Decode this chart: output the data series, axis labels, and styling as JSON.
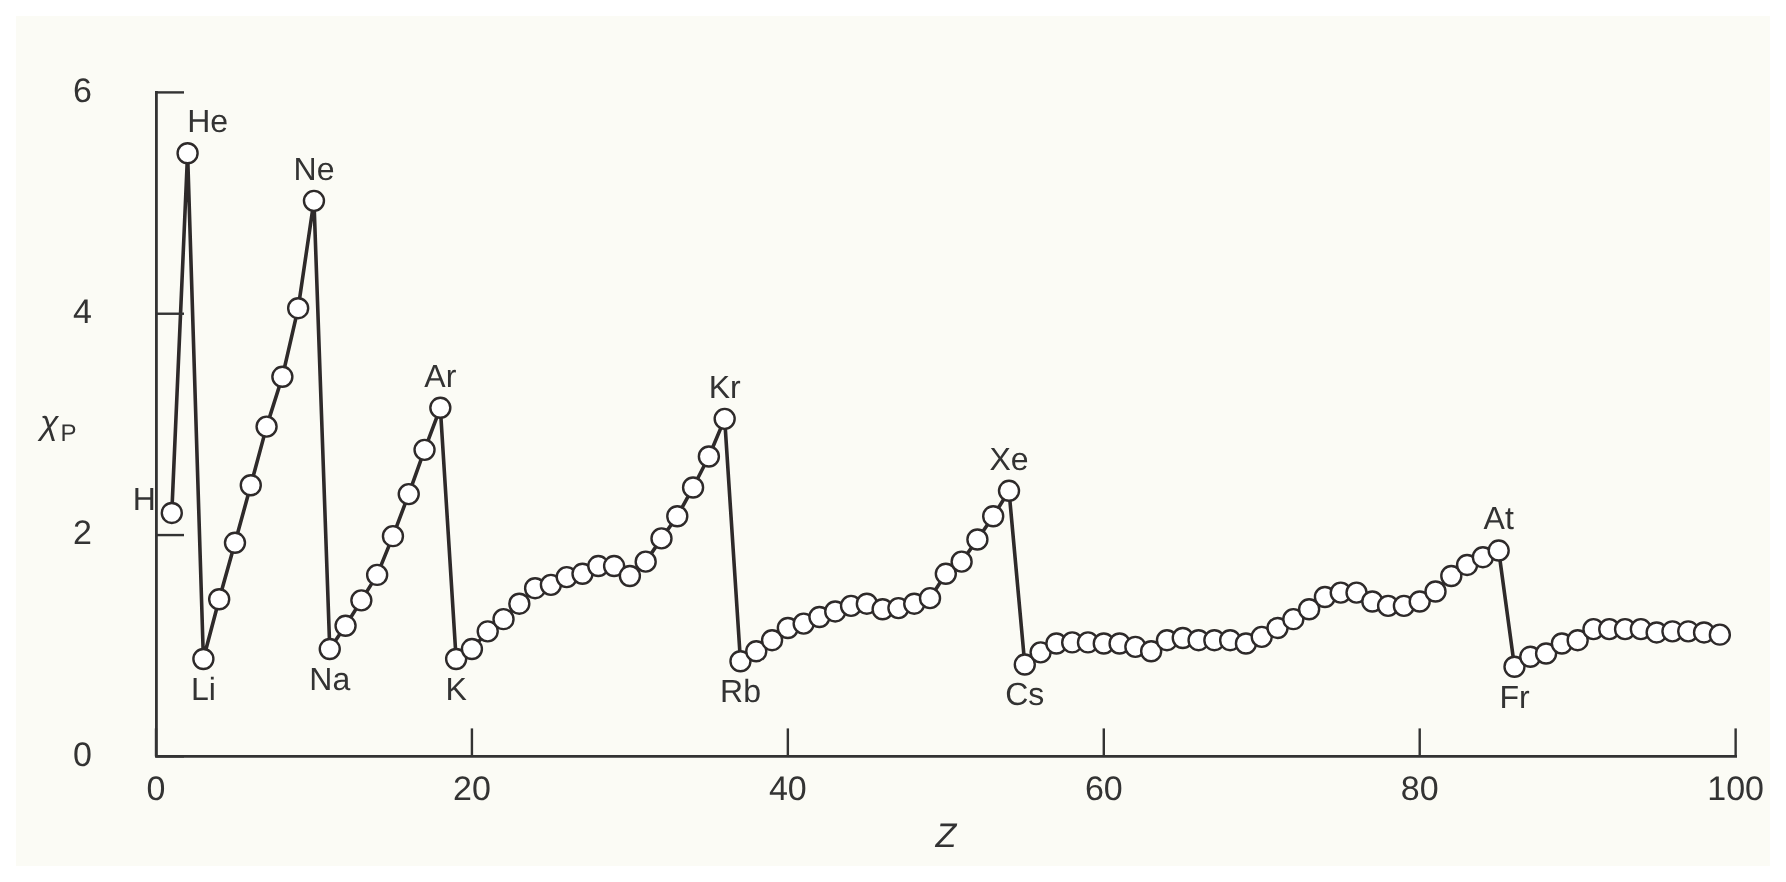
{
  "chart_data": {
    "type": "line",
    "xlabel": "Z",
    "ylabel": "χ$_{P}$",
    "xlim": [
      0,
      100
    ],
    "ylim": [
      0,
      6
    ],
    "xticks": [
      0,
      20,
      40,
      60,
      80,
      100
    ],
    "yticks": [
      0,
      2,
      4,
      6
    ],
    "grid": false,
    "legend": false,
    "marker": "circle",
    "line_style": "solid",
    "x": [
      1,
      2,
      3,
      4,
      5,
      6,
      7,
      8,
      9,
      10,
      11,
      12,
      13,
      14,
      15,
      16,
      17,
      18,
      19,
      20,
      21,
      22,
      23,
      24,
      25,
      26,
      27,
      28,
      29,
      30,
      31,
      32,
      33,
      34,
      35,
      36,
      37,
      38,
      39,
      40,
      41,
      42,
      43,
      44,
      45,
      46,
      47,
      48,
      49,
      50,
      51,
      52,
      53,
      54,
      55,
      56,
      57,
      58,
      59,
      60,
      61,
      62,
      63,
      64,
      65,
      66,
      67,
      68,
      69,
      70,
      71,
      72,
      73,
      74,
      75,
      76,
      77,
      78,
      79,
      80,
      81,
      82,
      83,
      84,
      85,
      86,
      87,
      88,
      89,
      90,
      91,
      92,
      93,
      94,
      95,
      96,
      97,
      98,
      99
    ],
    "series": [
      {
        "color": "#2e2a2a",
        "values": [
          2.2,
          5.45,
          0.88,
          1.42,
          1.93,
          2.45,
          2.98,
          3.43,
          4.05,
          5.02,
          0.97,
          1.18,
          1.41,
          1.64,
          1.99,
          2.37,
          2.77,
          3.15,
          0.88,
          0.97,
          1.13,
          1.24,
          1.38,
          1.52,
          1.55,
          1.62,
          1.65,
          1.72,
          1.72,
          1.63,
          1.76,
          1.97,
          2.17,
          2.43,
          2.71,
          3.05,
          0.86,
          0.95,
          1.05,
          1.16,
          1.2,
          1.26,
          1.31,
          1.36,
          1.38,
          1.33,
          1.34,
          1.38,
          1.43,
          1.65,
          1.76,
          1.96,
          2.17,
          2.4,
          0.83,
          0.94,
          1.02,
          1.03,
          1.03,
          1.02,
          1.02,
          0.99,
          0.95,
          1.05,
          1.07,
          1.05,
          1.05,
          1.05,
          1.02,
          1.08,
          1.16,
          1.24,
          1.33,
          1.44,
          1.48,
          1.48,
          1.4,
          1.36,
          1.36,
          1.4,
          1.49,
          1.63,
          1.73,
          1.8,
          1.86,
          0.81,
          0.9,
          0.93,
          1.02,
          1.05,
          1.15,
          1.15,
          1.15,
          1.15,
          1.12,
          1.13,
          1.13,
          1.12,
          1.1
        ]
      }
    ],
    "annotations": [
      {
        "text": "H",
        "x": 1,
        "y": 2.2
      },
      {
        "text": "He",
        "x": 2,
        "y": 5.45
      },
      {
        "text": "Li",
        "x": 3,
        "y": 0.88
      },
      {
        "text": "Ne",
        "x": 10,
        "y": 5.02
      },
      {
        "text": "Na",
        "x": 11,
        "y": 0.97
      },
      {
        "text": "Ar",
        "x": 18,
        "y": 3.15
      },
      {
        "text": "K",
        "x": 19,
        "y": 0.88
      },
      {
        "text": "Kr",
        "x": 36,
        "y": 3.05
      },
      {
        "text": "Rb",
        "x": 37,
        "y": 0.86
      },
      {
        "text": "Xe",
        "x": 54,
        "y": 2.4
      },
      {
        "text": "Cs",
        "x": 55,
        "y": 0.83
      },
      {
        "text": "At",
        "x": 85,
        "y": 1.86
      },
      {
        "text": "Fr",
        "x": 86,
        "y": 0.81
      }
    ]
  }
}
